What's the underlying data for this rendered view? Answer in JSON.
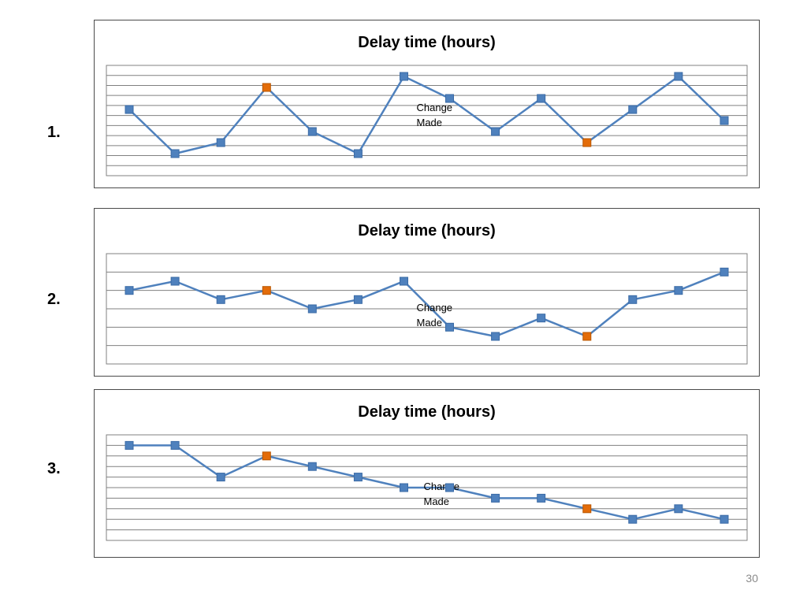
{
  "slide_number": "30",
  "charts": [
    {
      "label": "1.",
      "title": "Delay time (hours)",
      "annotation": [
        "Change",
        "Made"
      ]
    },
    {
      "label": "2.",
      "title": "Delay time (hours)",
      "annotation": [
        "Change",
        "Made"
      ]
    },
    {
      "label": "3.",
      "title": "Delay time (hours)",
      "annotation": [
        "Change",
        "Made"
      ]
    }
  ],
  "colors": {
    "line": "#4f81bd",
    "marker": "#4f81bd",
    "highlight_marker": "#e36c09",
    "gridline": "#808080",
    "frame": "#4a4a4a"
  },
  "chart_data": [
    {
      "type": "line",
      "title": "Delay time (hours)",
      "x": [
        1,
        2,
        3,
        4,
        5,
        6,
        7,
        8,
        9,
        10,
        11,
        12,
        13,
        14
      ],
      "values": [
        5,
        1,
        2,
        7,
        3,
        1,
        8,
        6,
        3,
        6,
        2,
        5,
        8,
        4
      ],
      "highlight_points": [
        4,
        11
      ],
      "ylim": [
        -1,
        9
      ],
      "grid": true,
      "annotation": {
        "text": "Change Made",
        "after_point": 7
      }
    },
    {
      "type": "line",
      "title": "Delay time (hours)",
      "x": [
        1,
        2,
        3,
        4,
        5,
        6,
        7,
        8,
        9,
        10,
        11,
        12,
        13,
        14
      ],
      "values": [
        4,
        4.5,
        3.5,
        4,
        3,
        3.5,
        4.5,
        2,
        1.5,
        2.5,
        1.5,
        3.5,
        4,
        5
      ],
      "highlight_points": [
        4,
        11
      ],
      "ylim": [
        0,
        6
      ],
      "grid": true,
      "annotation": {
        "text": "Change Made",
        "after_point": 7
      }
    },
    {
      "type": "line",
      "title": "Delay time (hours)",
      "x": [
        1,
        2,
        3,
        4,
        5,
        6,
        7,
        8,
        9,
        10,
        11,
        12,
        13,
        14
      ],
      "values": [
        9,
        9,
        6,
        8,
        7,
        6,
        5,
        5,
        4,
        4,
        3,
        2,
        3,
        2
      ],
      "highlight_points": [
        4,
        11
      ],
      "ylim": [
        0,
        10
      ],
      "grid": true,
      "annotation": {
        "text": "Change Made",
        "after_point": 7
      }
    }
  ]
}
